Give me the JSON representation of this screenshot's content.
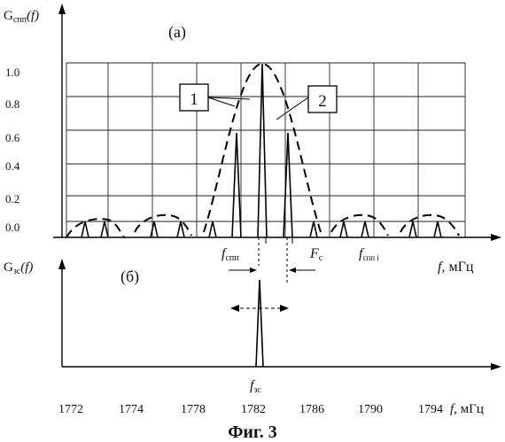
{
  "panel_a": {
    "y_label": "G",
    "y_label_sub": "спп",
    "y_label_arg": "(f)",
    "tag": "(а)",
    "y_ticks": [
      "1.0",
      "0.8",
      "0.6",
      "0.4",
      "0.2",
      "0.0"
    ],
    "callout_1": "1",
    "callout_2": "2",
    "f_spp": "f",
    "f_spp_sub": "спп",
    "F_c": "F",
    "F_c_sub": "c",
    "f_sppi": "f",
    "f_sppi_sub": "спп i",
    "x_label": "f",
    "x_unit": ", мГц"
  },
  "panel_b": {
    "y_label": "G",
    "y_label_sub": "зс",
    "y_label_arg": "(f)",
    "tag": "(б)",
    "x_label": "f",
    "x_unit": ", мГц",
    "f_zs": "f",
    "f_zs_sub": "зс"
  },
  "x_ticks": [
    "1772",
    "1774",
    "1778",
    "1782",
    "1786",
    "1790",
    "1794"
  ],
  "bottom_x_label": "f",
  "bottom_x_unit": ", мГц",
  "caption": "Фиг. 3"
}
